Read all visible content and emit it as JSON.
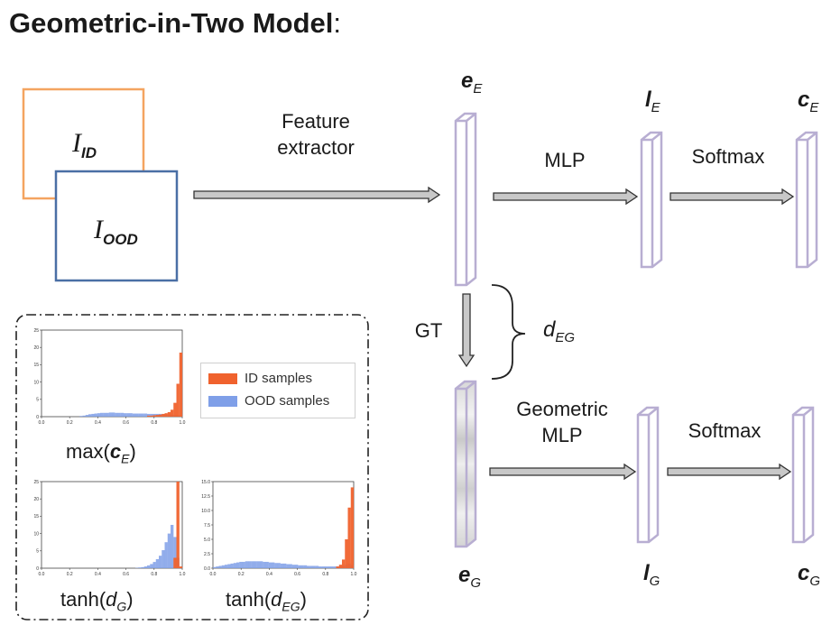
{
  "title": "Geometric-in-Two Model",
  "title_colon": ":",
  "inputs": {
    "id_base": "I",
    "id_sub": "ID",
    "ood_base": "I",
    "ood_sub": "OOD"
  },
  "flow_labels": {
    "feature_line1": "Feature",
    "feature_line2": "extractor",
    "mlp": "MLP",
    "softmax_top": "Softmax",
    "gt": "GT",
    "geometric_line1": "Geometric",
    "geometric_line2": "MLP",
    "softmax_bottom": "Softmax"
  },
  "distance": {
    "base": "d",
    "sub": "EG"
  },
  "vectors": {
    "e_E": {
      "base": "e",
      "sub": "E"
    },
    "l_E": {
      "base": "l",
      "sub": "E"
    },
    "c_E": {
      "base": "c",
      "sub": "E"
    },
    "e_G": {
      "base": "e",
      "sub": "G"
    },
    "l_G": {
      "base": "l",
      "sub": "G"
    },
    "c_G": {
      "base": "c",
      "sub": "G"
    }
  },
  "legend": {
    "id_label": "ID samples",
    "ood_label": "OOD samples"
  },
  "colors": {
    "id": "#f0622d",
    "ood": "#7f9fe8",
    "vector_border": "#b8aed2",
    "input_id_border": "#f4a460",
    "input_ood_border": "#4a6fa5"
  },
  "captions": {
    "maxc": {
      "pre": "max(",
      "base": "c",
      "sub": "E",
      "post": ")"
    },
    "tanhdg": {
      "pre": "tanh(",
      "base": "d",
      "sub": "G",
      "post": ")"
    },
    "tanhdeg": {
      "pre": "tanh(",
      "base": "d",
      "sub": "EG",
      "post": ")"
    }
  },
  "chart_data": [
    {
      "type": "bar",
      "caption": "max(c_E)",
      "xlim": [
        0.0,
        1.0
      ],
      "ylim": [
        0,
        25
      ],
      "x_ticks": [
        "0.0",
        "0.2",
        "0.4",
        "0.6",
        "0.8",
        "1.0"
      ],
      "y_ticks": [
        "0",
        "5",
        "10",
        "15",
        "20",
        "25"
      ],
      "bins": 48,
      "series": [
        {
          "name": "ID samples",
          "values": [
            0,
            0,
            0,
            0,
            0,
            0,
            0,
            0,
            0,
            0,
            0,
            0,
            0,
            0,
            0,
            0,
            0,
            0,
            0,
            0,
            0,
            0,
            0,
            0,
            0,
            0,
            0,
            0,
            0,
            0,
            0,
            0,
            0,
            0,
            0,
            0,
            0.3,
            0.3,
            0.4,
            0.5,
            0.6,
            0.8,
            1.0,
            1.3,
            2.0,
            4.0,
            9.5,
            18.5
          ]
        },
        {
          "name": "OOD samples",
          "values": [
            0,
            0,
            0,
            0,
            0,
            0,
            0,
            0,
            0,
            0,
            0,
            0,
            0,
            0.2,
            0.3,
            0.5,
            0.7,
            0.8,
            0.9,
            1.0,
            1.1,
            1.1,
            1.1,
            1.2,
            1.2,
            1.1,
            1.1,
            1.1,
            1.0,
            1.0,
            1.0,
            0.9,
            0.9,
            0.9,
            0.9,
            0.9,
            0.8,
            0.8,
            0.8,
            0.8,
            0.8,
            0.7,
            0.7,
            0.6,
            0.6,
            0.5,
            0.4,
            0.3
          ]
        }
      ]
    },
    {
      "type": "bar",
      "caption": "tanh(d_G)",
      "xlim": [
        0.0,
        1.0
      ],
      "ylim": [
        0,
        25
      ],
      "x_ticks": [
        "0.0",
        "0.2",
        "0.4",
        "0.6",
        "0.8",
        "1.0"
      ],
      "y_ticks": [
        "0",
        "5",
        "10",
        "15",
        "20",
        "25"
      ],
      "bins": 48,
      "series": [
        {
          "name": "ID samples",
          "values": [
            0,
            0,
            0,
            0,
            0,
            0,
            0,
            0,
            0,
            0,
            0,
            0,
            0,
            0,
            0,
            0,
            0,
            0,
            0,
            0,
            0,
            0,
            0,
            0,
            0,
            0,
            0,
            0,
            0,
            0,
            0,
            0,
            0,
            0,
            0,
            0,
            0,
            0,
            0,
            0,
            0,
            0,
            0,
            0,
            0,
            3.0,
            25.0,
            0.5
          ]
        },
        {
          "name": "OOD samples",
          "values": [
            0,
            0,
            0,
            0,
            0,
            0,
            0,
            0,
            0,
            0,
            0,
            0,
            0,
            0,
            0,
            0,
            0,
            0,
            0,
            0,
            0,
            0,
            0,
            0,
            0,
            0,
            0,
            0,
            0,
            0,
            0,
            0,
            0.1,
            0.2,
            0.3,
            0.5,
            0.8,
            1.2,
            1.8,
            2.6,
            3.6,
            5.2,
            7.5,
            10.0,
            12.5,
            9.0,
            3.0,
            0.3
          ]
        }
      ]
    },
    {
      "type": "bar",
      "caption": "tanh(d_EG)",
      "xlim": [
        0.0,
        1.0
      ],
      "ylim": [
        0,
        15
      ],
      "x_ticks": [
        "0.0",
        "0.2",
        "0.4",
        "0.6",
        "0.8",
        "1.0"
      ],
      "y_ticks": [
        "0.0",
        "2.5",
        "5.0",
        "7.5",
        "10.0",
        "12.5",
        "15.0"
      ],
      "bins": 48,
      "series": [
        {
          "name": "ID samples",
          "values": [
            0,
            0,
            0,
            0,
            0,
            0,
            0,
            0,
            0,
            0,
            0,
            0,
            0,
            0,
            0,
            0,
            0,
            0,
            0,
            0,
            0,
            0,
            0,
            0,
            0,
            0,
            0,
            0,
            0,
            0,
            0,
            0,
            0,
            0,
            0,
            0,
            0,
            0,
            0,
            0,
            0,
            0,
            0.3,
            0.6,
            1.5,
            5.0,
            10.5,
            14.0
          ]
        },
        {
          "name": "OOD samples",
          "values": [
            0.2,
            0.3,
            0.4,
            0.5,
            0.6,
            0.7,
            0.8,
            0.9,
            1.0,
            1.1,
            1.1,
            1.2,
            1.2,
            1.2,
            1.2,
            1.2,
            1.2,
            1.1,
            1.1,
            1.0,
            1.0,
            0.9,
            0.9,
            0.8,
            0.8,
            0.7,
            0.7,
            0.6,
            0.6,
            0.5,
            0.5,
            0.5,
            0.4,
            0.4,
            0.4,
            0.4,
            0.3,
            0.3,
            0.3,
            0.3,
            0.3,
            0.3,
            0.3,
            0.3,
            0.4,
            0.6,
            0.8,
            0.5
          ]
        }
      ]
    }
  ]
}
